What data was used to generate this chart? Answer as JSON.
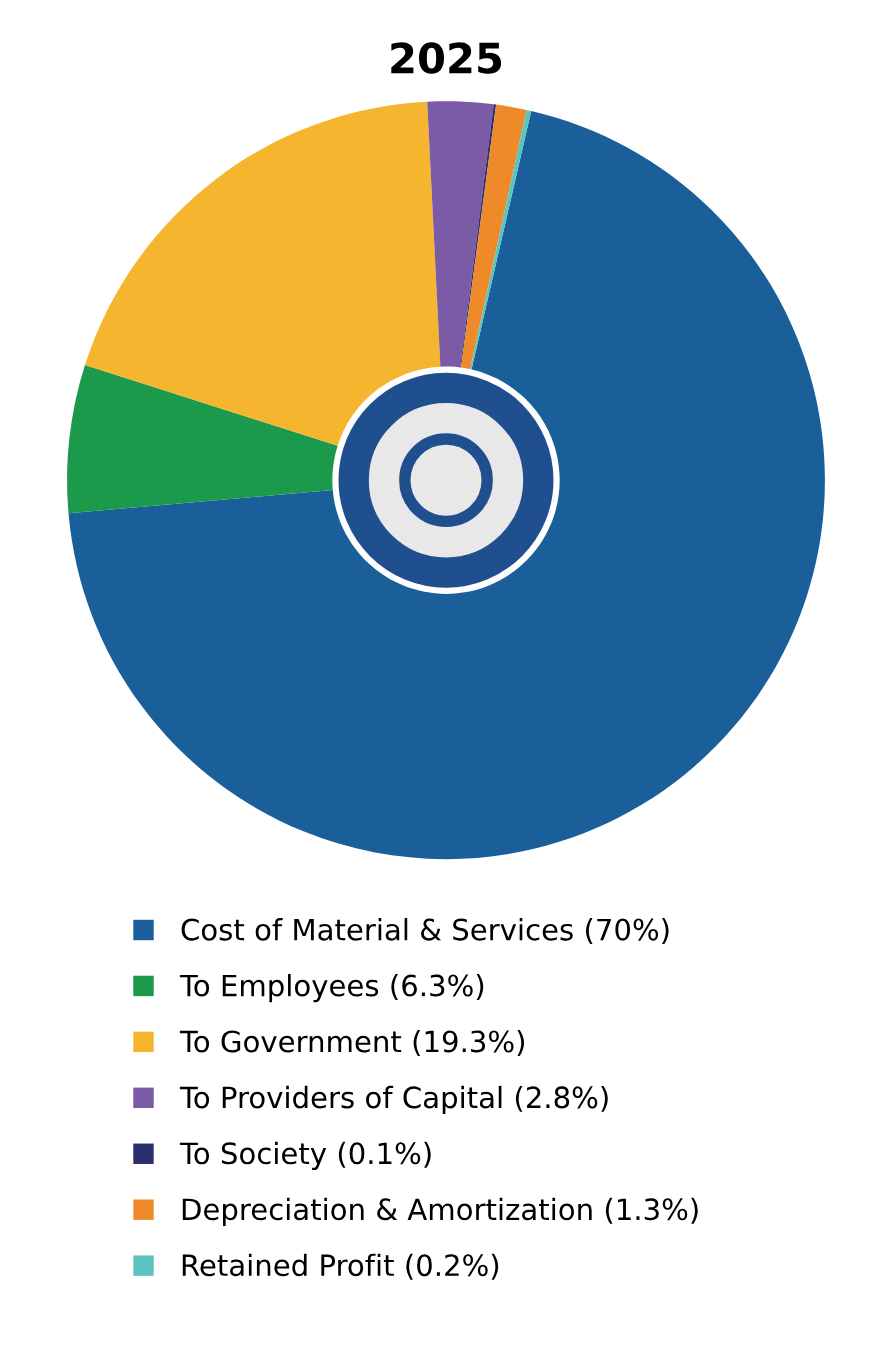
{
  "chart_data": {
    "type": "donut",
    "title": "2025",
    "categories": [
      "Cost of Material & Services (70%)",
      "To Employees (6.3%)",
      "To Government (19.3%)",
      "To Providers of Capital (2.8%)",
      "To Society (0.1%)",
      "Depreciation & Amortization (1.3%)",
      "Retained Profit (0.2%)"
    ],
    "values": [
      70,
      6.3,
      19.3,
      2.8,
      0.1,
      1.3,
      0.2
    ],
    "colors": [
      "#1a5f9a",
      "#1a9a4a",
      "#f5b52e",
      "#7b5aa6",
      "#2b2f6e",
      "#ee8a2a",
      "#5cc4c0"
    ],
    "legend": "bottom"
  }
}
